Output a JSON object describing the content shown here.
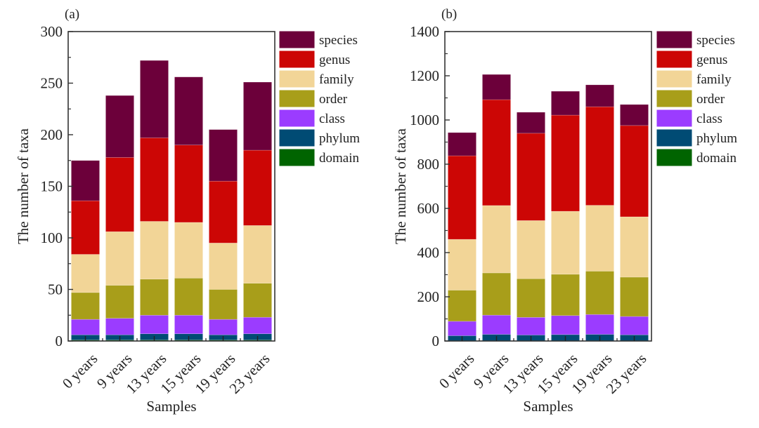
{
  "chart_data": [
    {
      "type": "bar",
      "stacked": true,
      "panel_label": "(a)",
      "title": "",
      "xlabel": "Samples",
      "ylabel": "The number of taxa",
      "ylim": [
        0,
        300
      ],
      "yticks": [
        0,
        50,
        100,
        150,
        200,
        250,
        300
      ],
      "ytick_labels": [
        "0",
        "50",
        "100",
        "150",
        "200",
        "250",
        "300"
      ],
      "minor_yticks": true,
      "grid": false,
      "legend_position": "outside-right-top",
      "categories": [
        "0 years",
        "9 years",
        "13 years",
        "15 years",
        "19 years",
        "23 years"
      ],
      "series": [
        {
          "name": "domain",
          "color": "#006400",
          "values": [
            1,
            1,
            1,
            1,
            1,
            1
          ]
        },
        {
          "name": "phylum",
          "color": "#004B74",
          "values": [
            5,
            5,
            6,
            6,
            5,
            6
          ]
        },
        {
          "name": "class",
          "color": "#9B3CFF",
          "values": [
            15,
            16,
            18,
            18,
            15,
            16
          ]
        },
        {
          "name": "order",
          "color": "#A89E1A",
          "values": [
            26,
            32,
            35,
            36,
            29,
            33
          ]
        },
        {
          "name": "family",
          "color": "#F2D597",
          "values": [
            37,
            52,
            56,
            54,
            45,
            56
          ]
        },
        {
          "name": "genus",
          "color": "#CC0605",
          "values": [
            52,
            72,
            81,
            75,
            60,
            73
          ]
        },
        {
          "name": "species",
          "color": "#6C003A",
          "values": [
            39,
            60,
            75,
            66,
            50,
            66
          ]
        }
      ],
      "totals": [
        175,
        238,
        272,
        256,
        205,
        251
      ]
    },
    {
      "type": "bar",
      "stacked": true,
      "panel_label": "(b)",
      "title": "",
      "xlabel": "Samples",
      "ylabel": "The number of taxa",
      "ylim": [
        0,
        1400
      ],
      "yticks": [
        0,
        200,
        400,
        600,
        800,
        1000,
        1200,
        1400
      ],
      "ytick_labels": [
        "0",
        "200",
        "400",
        "600",
        "800",
        "1000",
        "1200",
        "1400"
      ],
      "minor_yticks": true,
      "grid": false,
      "legend_position": "outside-right-top",
      "categories": [
        "0 years",
        "9 years",
        "13 years",
        "15 years",
        "19 years",
        "23 years"
      ],
      "series": [
        {
          "name": "domain",
          "color": "#006400",
          "values": [
            1,
            1,
            1,
            1,
            1,
            1
          ]
        },
        {
          "name": "phylum",
          "color": "#004B74",
          "values": [
            23,
            29,
            26,
            28,
            29,
            27
          ]
        },
        {
          "name": "class",
          "color": "#9B3CFF",
          "values": [
            65,
            87,
            80,
            86,
            90,
            83
          ]
        },
        {
          "name": "order",
          "color": "#A89E1A",
          "values": [
            141,
            191,
            175,
            187,
            196,
            178
          ]
        },
        {
          "name": "family",
          "color": "#F2D597",
          "values": [
            230,
            305,
            263,
            285,
            298,
            273
          ]
        },
        {
          "name": "genus",
          "color": "#CC0605",
          "values": [
            378,
            479,
            395,
            435,
            446,
            413
          ]
        },
        {
          "name": "species",
          "color": "#6C003A",
          "values": [
            105,
            114,
            95,
            108,
            99,
            95
          ]
        }
      ],
      "totals": [
        943,
        1206,
        1035,
        1130,
        1159,
        1070
      ]
    }
  ],
  "legend_order": [
    "species",
    "genus",
    "family",
    "order",
    "class",
    "phylum",
    "domain"
  ]
}
